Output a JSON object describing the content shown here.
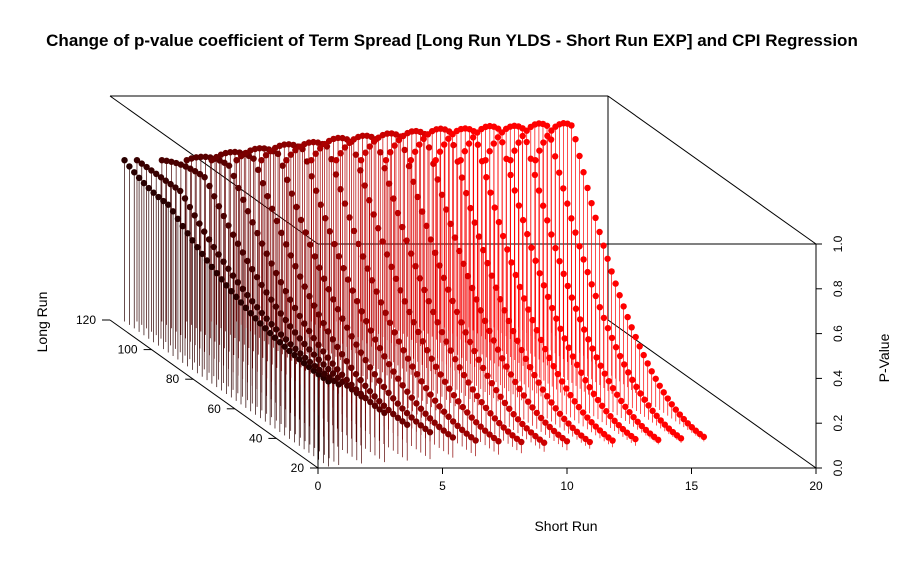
{
  "chart_data": {
    "type": "scatter3d",
    "title": "Change of p-value coefficient of Term Spread [Long Run YLDS - Short Run EXP] and CPI Regression",
    "xlabel": "Short Run",
    "ylabel": "Long Run",
    "zlabel": "P-Value",
    "xlim": [
      0,
      20
    ],
    "ylim": [
      20,
      120
    ],
    "zlim": [
      0.0,
      1.0
    ],
    "x_ticks": [
      "0",
      "5",
      "10",
      "15",
      "20"
    ],
    "y_ticks": [
      "20",
      "40",
      "60",
      "80",
      "100",
      "120"
    ],
    "z_ticks": [
      "0.0",
      "0.2",
      "0.4",
      "0.6",
      "0.8",
      "1.0"
    ],
    "type_detail": "vertical lines from base plane with points",
    "series": [
      {
        "short_run": 0.5,
        "long_run_range": [
          21,
          119
        ],
        "peak_p_value": 0.66,
        "low_p_value": 0.38
      },
      {
        "short_run": 1.0,
        "long_run_range": [
          22,
          119
        ],
        "peak_p_value": 0.72,
        "low_p_value": 0.36
      },
      {
        "short_run": 2.0,
        "long_run_range": [
          23,
          119
        ],
        "peak_p_value": 0.78,
        "low_p_value": 0.3
      },
      {
        "short_run": 3.0,
        "long_run_range": [
          24,
          119
        ],
        "peak_p_value": 0.83,
        "low_p_value": 0.22
      },
      {
        "short_run": 4.0,
        "long_run_range": [
          25,
          119
        ],
        "peak_p_value": 0.86,
        "low_p_value": 0.16
      },
      {
        "short_run": 5.0,
        "long_run_range": [
          26,
          119
        ],
        "peak_p_value": 0.88,
        "low_p_value": 0.12
      },
      {
        "short_run": 6.0,
        "long_run_range": [
          27,
          119
        ],
        "peak_p_value": 0.9,
        "low_p_value": 0.09
      },
      {
        "short_run": 7.0,
        "long_run_range": [
          28,
          119
        ],
        "peak_p_value": 0.91,
        "low_p_value": 0.07
      },
      {
        "short_run": 8.0,
        "long_run_range": [
          29,
          119
        ],
        "peak_p_value": 0.93,
        "low_p_value": 0.06
      },
      {
        "short_run": 9.0,
        "long_run_range": [
          30,
          119
        ],
        "peak_p_value": 0.94,
        "low_p_value": 0.05
      },
      {
        "short_run": 10.0,
        "long_run_range": [
          31,
          119
        ],
        "peak_p_value": 0.95,
        "low_p_value": 0.04
      },
      {
        "short_run": 11.0,
        "long_run_range": [
          32,
          119
        ],
        "peak_p_value": 0.96,
        "low_p_value": 0.04
      },
      {
        "short_run": 12.0,
        "long_run_range": [
          33,
          119
        ],
        "peak_p_value": 0.97,
        "low_p_value": 0.03
      },
      {
        "short_run": 13.0,
        "long_run_range": [
          34,
          119
        ],
        "peak_p_value": 0.97,
        "low_p_value": 0.03
      },
      {
        "short_run": 14.0,
        "long_run_range": [
          35,
          119
        ],
        "peak_p_value": 0.98,
        "low_p_value": 0.03
      },
      {
        "short_run": 15.0,
        "long_run_range": [
          36,
          119
        ],
        "peak_p_value": 0.98,
        "low_p_value": 0.02
      },
      {
        "short_run": 16.0,
        "long_run_range": [
          37,
          119
        ],
        "peak_p_value": 0.99,
        "low_p_value": 0.02
      },
      {
        "short_run": 17.0,
        "long_run_range": [
          38,
          119
        ],
        "peak_p_value": 0.99,
        "low_p_value": 0.02
      }
    ],
    "color_scale": "black (low short run) to red (high short run) to dark red at back"
  }
}
